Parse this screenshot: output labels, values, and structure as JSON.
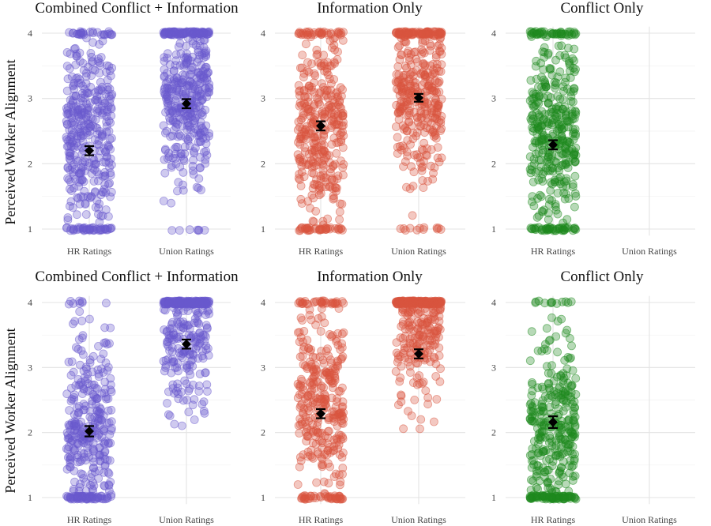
{
  "figure": {
    "y_axis_label": "Perceived Worker Alignment",
    "colors": {
      "combined": "#6a5acd",
      "information": "#d9553f",
      "conflict": "#1e8a1e",
      "estimate": "#000000"
    }
  },
  "chart_data": [
    {
      "type": "scatter",
      "row": 1,
      "col": 1,
      "title": "Combined Conflict + Information",
      "color_key": "combined",
      "categories": [
        "HR Ratings",
        "Union Ratings"
      ],
      "ylim": [
        0.9,
        4.1
      ],
      "yticks": [
        1,
        2,
        3,
        4
      ],
      "groups": [
        {
          "category": "HR Ratings",
          "mean": 2.2,
          "ci": [
            2.13,
            2.27
          ],
          "n": 420,
          "shape": "mid"
        },
        {
          "category": "Union Ratings",
          "mean": 2.92,
          "ci": [
            2.85,
            2.99
          ],
          "n": 440,
          "shape": "high"
        }
      ]
    },
    {
      "type": "scatter",
      "row": 1,
      "col": 2,
      "title": "Information Only",
      "color_key": "information",
      "categories": [
        "HR Ratings",
        "Union Ratings"
      ],
      "ylim": [
        0.9,
        4.1
      ],
      "yticks": [
        1,
        2,
        3,
        4
      ],
      "groups": [
        {
          "category": "HR Ratings",
          "mean": 2.58,
          "ci": [
            2.51,
            2.65
          ],
          "n": 400,
          "shape": "mid"
        },
        {
          "category": "Union Ratings",
          "mean": 3.01,
          "ci": [
            2.95,
            3.07
          ],
          "n": 400,
          "shape": "high"
        }
      ]
    },
    {
      "type": "scatter",
      "row": 1,
      "col": 3,
      "title": "Conflict Only",
      "color_key": "conflict",
      "categories": [
        "HR Ratings",
        "Union Ratings"
      ],
      "ylim": [
        0.9,
        4.1
      ],
      "yticks": [
        1,
        2,
        3,
        4
      ],
      "groups": [
        {
          "category": "HR Ratings",
          "mean": 2.29,
          "ci": [
            2.22,
            2.36
          ],
          "n": 430,
          "shape": "mid"
        }
      ]
    },
    {
      "type": "scatter",
      "row": 2,
      "col": 1,
      "title": "Combined Conflict + Information",
      "color_key": "combined",
      "categories": [
        "HR Ratings",
        "Union Ratings"
      ],
      "ylim": [
        0.9,
        4.1
      ],
      "yticks": [
        1,
        2,
        3,
        4
      ],
      "groups": [
        {
          "category": "HR Ratings",
          "mean": 2.02,
          "ci": [
            1.94,
            2.1
          ],
          "n": 360,
          "shape": "low"
        },
        {
          "category": "Union Ratings",
          "mean": 3.36,
          "ci": [
            3.29,
            3.43
          ],
          "n": 360,
          "shape": "vhigh"
        }
      ]
    },
    {
      "type": "scatter",
      "row": 2,
      "col": 2,
      "title": "Information Only",
      "color_key": "information",
      "categories": [
        "HR Ratings",
        "Union Ratings"
      ],
      "ylim": [
        0.9,
        4.1
      ],
      "yticks": [
        1,
        2,
        3,
        4
      ],
      "groups": [
        {
          "category": "HR Ratings",
          "mean": 2.29,
          "ci": [
            2.22,
            2.36
          ],
          "n": 370,
          "shape": "mid"
        },
        {
          "category": "Union Ratings",
          "mean": 3.21,
          "ci": [
            3.14,
            3.28
          ],
          "n": 370,
          "shape": "vhigh"
        }
      ]
    },
    {
      "type": "scatter",
      "row": 2,
      "col": 3,
      "title": "Conflict Only",
      "color_key": "conflict",
      "categories": [
        "HR Ratings",
        "Union Ratings"
      ],
      "ylim": [
        0.9,
        4.1
      ],
      "yticks": [
        1,
        2,
        3,
        4
      ],
      "groups": [
        {
          "category": "HR Ratings",
          "mean": 2.16,
          "ci": [
            2.07,
            2.25
          ],
          "n": 380,
          "shape": "low"
        }
      ]
    }
  ]
}
